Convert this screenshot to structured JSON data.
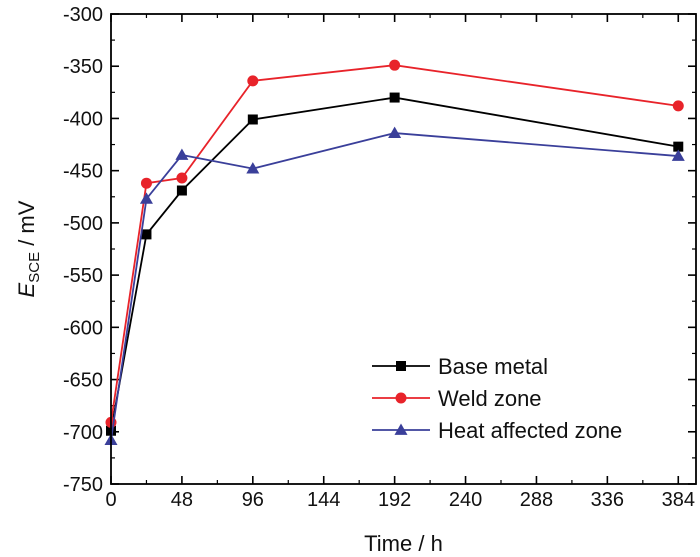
{
  "chart_data": {
    "type": "line",
    "xlabel": "Time / h",
    "ylabel": {
      "main": "E",
      "sub": "SCE",
      "unit": " / mV"
    },
    "xlim": [
      0,
      396
    ],
    "ylim": [
      -750,
      -300
    ],
    "xticks": [
      0,
      48,
      96,
      144,
      192,
      240,
      288,
      336,
      384
    ],
    "yticks": [
      -300,
      -350,
      -400,
      -450,
      -500,
      -550,
      -600,
      -650,
      -700,
      -750
    ],
    "grid": false,
    "legend_position": "bottom-right",
    "series": [
      {
        "name": "Base metal",
        "color": "#000000",
        "marker": "square",
        "x": [
          0,
          24,
          48,
          96,
          192,
          384
        ],
        "y": [
          -699,
          -511,
          -469,
          -401,
          -380,
          -427
        ]
      },
      {
        "name": "Weld zone",
        "color": "#e8232a",
        "marker": "circle",
        "x": [
          0,
          24,
          48,
          96,
          192,
          384
        ],
        "y": [
          -691,
          -462,
          -457,
          -364,
          -349,
          -388
        ]
      },
      {
        "name": "Heat affected zone",
        "color": "#3a3f9a",
        "marker": "triangle",
        "x": [
          0,
          24,
          48,
          96,
          192,
          384
        ],
        "y": [
          -708,
          -477,
          -435,
          -448,
          -414,
          -436
        ]
      }
    ]
  }
}
